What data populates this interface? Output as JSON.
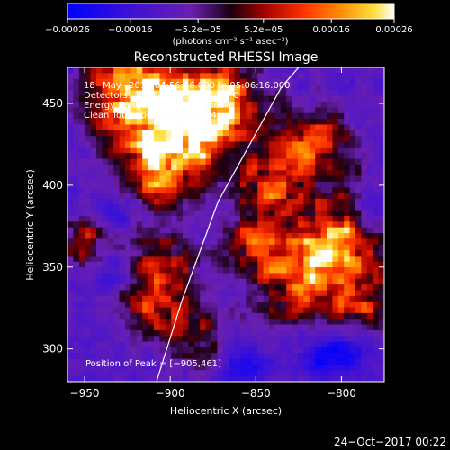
{
  "colorbar": {
    "ticks": [
      {
        "value": -0.00026,
        "label": "−0.00026"
      },
      {
        "value": -0.00016,
        "label": "−0.00016"
      },
      {
        "value": -5.2e-05,
        "label": "−5.2e−05"
      },
      {
        "value": 5.2e-05,
        "label": "5.2e−05"
      },
      {
        "value": 0.00016,
        "label": "0.00016"
      },
      {
        "value": 0.00026,
        "label": "0.00026"
      }
    ],
    "range": [
      -0.00026,
      0.00026
    ],
    "units_label": "(photons cm⁻² s⁻¹ asec⁻²)"
  },
  "chart_data": {
    "type": "heatmap",
    "title": "Reconstructed RHESSI Image",
    "xlabel": "Heliocentric X (arcsec)",
    "ylabel": "Heliocentric Y (arcsec)",
    "xlim": [
      -960,
      -775
    ],
    "ylim": [
      280,
      472
    ],
    "x_ticks": [
      {
        "value": -950,
        "label": "−950"
      },
      {
        "value": -900,
        "label": "−900"
      },
      {
        "value": -850,
        "label": "−850"
      },
      {
        "value": -800,
        "label": "−800"
      }
    ],
    "y_ticks": [
      {
        "value": 300,
        "label": "300"
      },
      {
        "value": 350,
        "label": "350"
      },
      {
        "value": 400,
        "label": "400"
      },
      {
        "value": 450,
        "label": "450"
      }
    ],
    "info_lines": [
      "18−May−2017 04:56:16.000 to 05:06:16.000",
      "Detectors: 3F 5F 6F 7F 8F 9F, AP 0",
      "Energy Range: 12.0 − 25.0 keV",
      "Clean     Total counts: 1.63E+04"
    ],
    "peak_label": "Position of Peak = [−905,461]",
    "peak": {
      "x": -905,
      "y": 461
    },
    "limb_curve": [
      [
        -908,
        280
      ],
      [
        -893,
        330
      ],
      [
        -872,
        390
      ],
      [
        -835,
        460
      ],
      [
        -825,
        472
      ]
    ],
    "colors": {
      "frame": "#ffffff",
      "limb": "#ffffff"
    }
  },
  "footer": {
    "date": "24−Oct−2017 00:22"
  }
}
